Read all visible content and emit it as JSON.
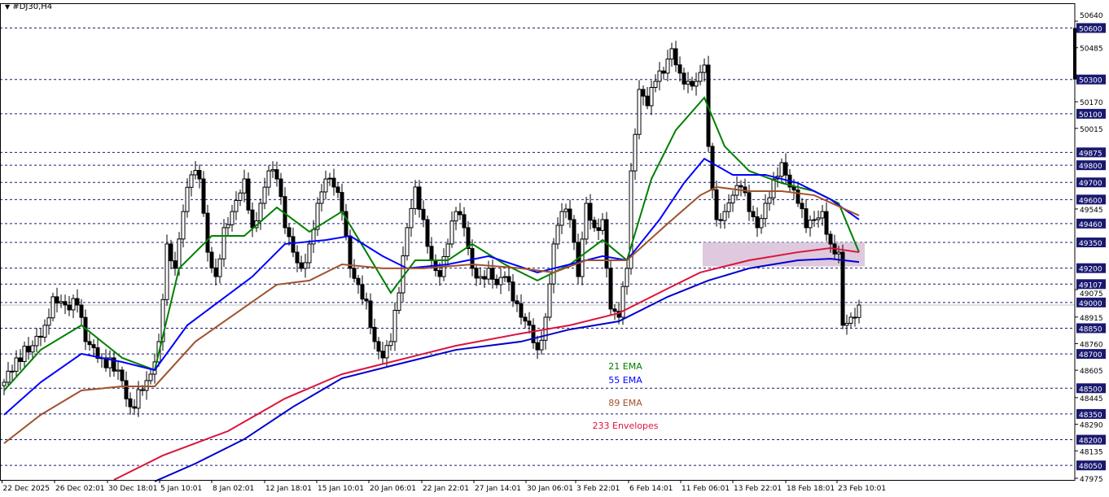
{
  "window": {
    "title": "#DJ30,H4",
    "menu_icon": "triangle-down-icon"
  },
  "chart_data": {
    "type": "candlestick",
    "symbol": "#DJ30",
    "timeframe": "H4",
    "ylim": [
      47975,
      50640
    ],
    "grid": false,
    "colors": {
      "ema21": "#008000",
      "ema55": "#0000ff",
      "ema89": "#a0522d",
      "env_upper": "#dc143c",
      "env_lower": "#0000cd",
      "zone": "#d8bfd8",
      "level_label_bg": "#191970"
    },
    "y_ticks": [
      50640,
      50485,
      50170,
      50015,
      49545,
      49075,
      48915,
      48760,
      48605,
      48445,
      48290,
      48135,
      47975
    ],
    "levels": [
      50600,
      50300,
      50100,
      49875,
      49800,
      49700,
      49600,
      49460,
      49350,
      49200,
      49107,
      49000,
      48850,
      48700,
      48500,
      48350,
      48200,
      48050
    ],
    "x_ticks": [
      {
        "bar": -0.5,
        "label": "22 Dec 2025"
      },
      {
        "bar": 12.4,
        "label": "26 Dec 02:01"
      },
      {
        "bar": 25.4,
        "label": "30 Dec 18:01"
      },
      {
        "bar": 38.2,
        "label": "5 Jan 10:01"
      },
      {
        "bar": 51,
        "label": "8 Jan 02:01"
      },
      {
        "bar": 64,
        "label": "12 Jan 18:01"
      },
      {
        "bar": 76.8,
        "label": "15 Jan 10:01"
      },
      {
        "bar": 89.6,
        "label": "20 Jan 06:01"
      },
      {
        "bar": 102.6,
        "label": "22 Jan 22:01"
      },
      {
        "bar": 115.4,
        "label": "27 Jan 14:01"
      },
      {
        "bar": 128.2,
        "label": "30 Jan 06:01"
      },
      {
        "bar": 140.4,
        "label": "3 Feb 22:01"
      },
      {
        "bar": 153.4,
        "label": "6 Feb 14:01"
      },
      {
        "bar": 166.2,
        "label": "11 Feb 06:01"
      },
      {
        "bar": 179,
        "label": "13 Feb 22:01"
      },
      {
        "bar": 192,
        "label": "18 Feb 18:01"
      },
      {
        "bar": 204.6,
        "label": "23 Feb 10:01"
      }
    ],
    "closes": [
      [
        0,
        48535
      ],
      [
        3,
        48677
      ],
      [
        7,
        48748
      ],
      [
        10,
        48867
      ],
      [
        12,
        49033
      ],
      [
        15,
        48985
      ],
      [
        18,
        48985
      ],
      [
        20,
        48772
      ],
      [
        24,
        48677
      ],
      [
        28,
        48606
      ],
      [
        31,
        48392
      ],
      [
        34,
        48487
      ],
      [
        36,
        48582
      ],
      [
        38,
        48772
      ],
      [
        40,
        49341
      ],
      [
        42,
        49199
      ],
      [
        44,
        49530
      ],
      [
        46,
        49744
      ],
      [
        48,
        49720
      ],
      [
        50,
        49293
      ],
      [
        52,
        49151
      ],
      [
        54,
        49436
      ],
      [
        56,
        49530
      ],
      [
        59,
        49720
      ],
      [
        61,
        49436
      ],
      [
        63,
        49578
      ],
      [
        65,
        49767
      ],
      [
        67,
        49720
      ],
      [
        69,
        49436
      ],
      [
        71,
        49293
      ],
      [
        73,
        49199
      ],
      [
        75,
        49341
      ],
      [
        77,
        49578
      ],
      [
        79,
        49720
      ],
      [
        81,
        49673
      ],
      [
        83,
        49530
      ],
      [
        85,
        49199
      ],
      [
        87,
        49104
      ],
      [
        89,
        49009
      ],
      [
        91,
        48772
      ],
      [
        93,
        48677
      ],
      [
        95,
        48772
      ],
      [
        97,
        49056
      ],
      [
        99,
        49436
      ],
      [
        101,
        49673
      ],
      [
        103,
        49483
      ],
      [
        105,
        49246
      ],
      [
        107,
        49151
      ],
      [
        109,
        49341
      ],
      [
        111,
        49530
      ],
      [
        113,
        49436
      ],
      [
        115,
        49199
      ],
      [
        117,
        49151
      ],
      [
        119,
        49199
      ],
      [
        121,
        49104
      ],
      [
        123,
        49151
      ],
      [
        125,
        49009
      ],
      [
        127,
        48914
      ],
      [
        129,
        48867
      ],
      [
        131,
        48724
      ],
      [
        133,
        48914
      ],
      [
        135,
        49341
      ],
      [
        137,
        49530
      ],
      [
        139,
        49483
      ],
      [
        141,
        49151
      ],
      [
        143,
        49578
      ],
      [
        145,
        49436
      ],
      [
        147,
        49483
      ],
      [
        149,
        48962
      ],
      [
        151,
        48914
      ],
      [
        153,
        49199
      ],
      [
        154,
        49767
      ],
      [
        156,
        50242
      ],
      [
        158,
        50147
      ],
      [
        160,
        50289
      ],
      [
        162,
        50337
      ],
      [
        164,
        50479
      ],
      [
        166,
        50337
      ],
      [
        168,
        50289
      ],
      [
        170,
        50289
      ],
      [
        172,
        50384
      ],
      [
        173,
        49910
      ],
      [
        175,
        49483
      ],
      [
        177,
        49530
      ],
      [
        179,
        49625
      ],
      [
        181,
        49673
      ],
      [
        183,
        49530
      ],
      [
        185,
        49436
      ],
      [
        187,
        49578
      ],
      [
        189,
        49720
      ],
      [
        191,
        49815
      ],
      [
        193,
        49673
      ],
      [
        195,
        49578
      ],
      [
        197,
        49436
      ],
      [
        199,
        49483
      ],
      [
        201,
        49530
      ],
      [
        203,
        49341
      ],
      [
        205,
        49293
      ],
      [
        206,
        48867
      ],
      [
        208,
        48914
      ],
      [
        210,
        48985
      ]
    ],
    "series": [
      {
        "name": "21 EMA",
        "color": "#008000",
        "points": [
          [
            0,
            48487
          ],
          [
            9,
            48724
          ],
          [
            19,
            48867
          ],
          [
            29,
            48677
          ],
          [
            37,
            48606
          ],
          [
            43,
            49199
          ],
          [
            51,
            49388
          ],
          [
            59,
            49388
          ],
          [
            67,
            49554
          ],
          [
            75,
            49412
          ],
          [
            83,
            49530
          ],
          [
            89,
            49293
          ],
          [
            95,
            49056
          ],
          [
            101,
            49246
          ],
          [
            109,
            49246
          ],
          [
            115,
            49341
          ],
          [
            123,
            49222
          ],
          [
            131,
            49128
          ],
          [
            139,
            49222
          ],
          [
            147,
            49364
          ],
          [
            153,
            49246
          ],
          [
            159,
            49720
          ],
          [
            165,
            50005
          ],
          [
            172,
            50194
          ],
          [
            177,
            49910
          ],
          [
            183,
            49767
          ],
          [
            191,
            49696
          ],
          [
            199,
            49649
          ],
          [
            205,
            49578
          ],
          [
            210,
            49293
          ]
        ]
      },
      {
        "name": "55 EMA",
        "color": "#0000ff",
        "points": [
          [
            0,
            48345
          ],
          [
            9,
            48535
          ],
          [
            19,
            48701
          ],
          [
            29,
            48653
          ],
          [
            37,
            48606
          ],
          [
            45,
            48867
          ],
          [
            53,
            49009
          ],
          [
            61,
            49151
          ],
          [
            69,
            49341
          ],
          [
            79,
            49364
          ],
          [
            85,
            49388
          ],
          [
            93,
            49270
          ],
          [
            99,
            49199
          ],
          [
            109,
            49222
          ],
          [
            119,
            49270
          ],
          [
            131,
            49175
          ],
          [
            139,
            49222
          ],
          [
            147,
            49270
          ],
          [
            153,
            49246
          ],
          [
            161,
            49483
          ],
          [
            167,
            49696
          ],
          [
            172,
            49838
          ],
          [
            179,
            49744
          ],
          [
            187,
            49744
          ],
          [
            195,
            49696
          ],
          [
            203,
            49601
          ],
          [
            210,
            49483
          ]
        ]
      },
      {
        "name": "89 EMA",
        "color": "#a0522d",
        "points": [
          [
            0,
            48179
          ],
          [
            9,
            48345
          ],
          [
            19,
            48487
          ],
          [
            29,
            48511
          ],
          [
            37,
            48511
          ],
          [
            47,
            48772
          ],
          [
            57,
            48938
          ],
          [
            67,
            49104
          ],
          [
            75,
            49128
          ],
          [
            83,
            49222
          ],
          [
            93,
            49199
          ],
          [
            103,
            49199
          ],
          [
            115,
            49222
          ],
          [
            127,
            49199
          ],
          [
            135,
            49175
          ],
          [
            143,
            49246
          ],
          [
            153,
            49246
          ],
          [
            163,
            49460
          ],
          [
            171,
            49625
          ],
          [
            175,
            49673
          ],
          [
            183,
            49649
          ],
          [
            191,
            49649
          ],
          [
            199,
            49625
          ],
          [
            210,
            49507
          ]
        ]
      },
      {
        "name": "233 Envelopes",
        "color": "#dc143c",
        "points": [
          [
            27,
            47966
          ],
          [
            39,
            48108
          ],
          [
            55,
            48250
          ],
          [
            69,
            48440
          ],
          [
            83,
            48582
          ],
          [
            95,
            48653
          ],
          [
            111,
            48748
          ],
          [
            127,
            48819
          ],
          [
            139,
            48867
          ],
          [
            151,
            48938
          ],
          [
            163,
            49081
          ],
          [
            171,
            49175
          ],
          [
            183,
            49246
          ],
          [
            195,
            49293
          ],
          [
            203,
            49317
          ],
          [
            210,
            49293
          ]
        ]
      },
      {
        "color": "#0000cd",
        "points": [
          [
            37,
            47957
          ],
          [
            47,
            48061
          ],
          [
            59,
            48203
          ],
          [
            71,
            48392
          ],
          [
            83,
            48558
          ],
          [
            95,
            48630
          ],
          [
            111,
            48724
          ],
          [
            127,
            48772
          ],
          [
            139,
            48843
          ],
          [
            151,
            48890
          ],
          [
            163,
            49033
          ],
          [
            173,
            49128
          ],
          [
            183,
            49199
          ],
          [
            195,
            49246
          ],
          [
            203,
            49255
          ],
          [
            210,
            49236
          ]
        ]
      }
    ],
    "zone": {
      "bar_from": 171.6,
      "bar_to": 211.4,
      "price_low": 49210,
      "price_high": 49350
    },
    "current_price_line": 48985,
    "annotations": [
      "21 EMA",
      "55 EMA",
      "89 EMA",
      "233 Envelopes"
    ]
  }
}
